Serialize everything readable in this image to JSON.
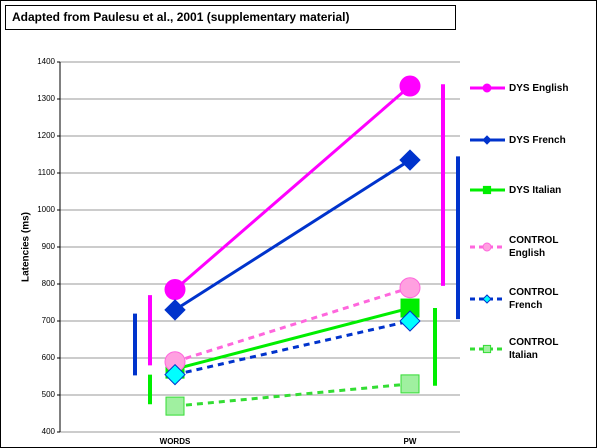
{
  "chart_data": {
    "type": "line",
    "title": "Adapted from Paulesu et al., 2001 (supplementary material)",
    "y_label": "Latencies (ms)",
    "categories": [
      "WORDS",
      "PW"
    ],
    "ylim": [
      400,
      1400
    ],
    "yticks": [
      400,
      500,
      600,
      700,
      800,
      900,
      1000,
      1100,
      1200,
      1300,
      1400
    ],
    "grid": true,
    "series": [
      {
        "name": "DYS English",
        "color": "#ff00ff",
        "marker_fill": "#ff00ff",
        "marker": "circle",
        "dashed": false,
        "values": [
          785,
          1335
        ],
        "error_low": [
          580,
          795
        ],
        "error_high": [
          770,
          1340
        ]
      },
      {
        "name": "DYS French",
        "color": "#0033cc",
        "marker_fill": "#0033cc",
        "marker": "diamond",
        "dashed": false,
        "values": [
          730,
          1135
        ],
        "error_low": [
          553,
          705
        ],
        "error_high": [
          720,
          1145
        ]
      },
      {
        "name": "DYS Italian",
        "color": "#00ee00",
        "marker_fill": "#00ee00",
        "marker": "square",
        "dashed": false,
        "values": [
          570,
          735
        ],
        "error_low": [
          475,
          525
        ],
        "error_high": [
          555,
          735
        ]
      },
      {
        "name": "CONTROL English",
        "color": "#ff66dd",
        "marker_fill": "#ffa0e0",
        "marker": "circle",
        "dashed": true,
        "values": [
          590,
          790
        ]
      },
      {
        "name": "CONTROL French",
        "color": "#0033cc",
        "marker_fill": "#00ffff",
        "marker": "diamond",
        "dashed": true,
        "values": [
          555,
          700
        ]
      },
      {
        "name": "CONTROL Italian",
        "color": "#33dd33",
        "marker_fill": "#a0f0a0",
        "marker": "square",
        "dashed": true,
        "values": [
          470,
          530
        ]
      }
    ]
  }
}
